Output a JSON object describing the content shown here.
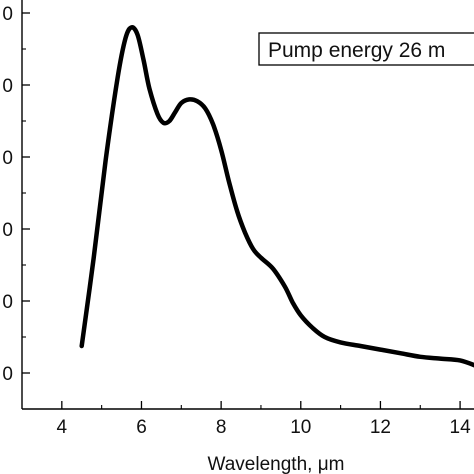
{
  "chart_data": {
    "type": "line",
    "title": "",
    "xlabel": "Wavelength, μm",
    "ylabel": "",
    "xlim": [
      3.0,
      14.5
    ],
    "ylim": [
      3.0,
      14.5
    ],
    "x_ticks": [
      4,
      6,
      8,
      10,
      12,
      14
    ],
    "x_tick_labels": [
      "4",
      "6",
      "8",
      "10",
      "12",
      "14"
    ],
    "y_ticks": [
      4,
      6,
      8,
      10,
      12,
      14
    ],
    "y_tick_labels": [
      "0",
      "0",
      "0",
      "0",
      "0",
      "0"
    ],
    "grid": false,
    "legend_position": "top-right",
    "annotation": "Pump energy 26 m",
    "line_color": "#000000",
    "series": [
      {
        "x": [
          4.5,
          4.8,
          5.1,
          5.4,
          5.6,
          5.75,
          5.9,
          6.05,
          6.2,
          6.4,
          6.55,
          6.7,
          6.85,
          7.0,
          7.2,
          7.4,
          7.6,
          7.8,
          8.0,
          8.2,
          8.4,
          8.6,
          8.8,
          9.0,
          9.3,
          9.6,
          9.8,
          10.0,
          10.3,
          10.6,
          11.0,
          11.5,
          12.0,
          12.5,
          13.0,
          13.5,
          14.0,
          14.4
        ],
        "y": [
          4.75,
          7.2,
          9.9,
          12.2,
          13.3,
          13.6,
          13.4,
          12.7,
          11.9,
          11.2,
          10.95,
          11.0,
          11.25,
          11.5,
          11.6,
          11.55,
          11.35,
          10.9,
          10.2,
          9.3,
          8.5,
          7.9,
          7.45,
          7.2,
          6.9,
          6.4,
          5.95,
          5.6,
          5.25,
          5.0,
          4.85,
          4.75,
          4.65,
          4.55,
          4.45,
          4.4,
          4.35,
          4.2
        ]
      }
    ]
  }
}
